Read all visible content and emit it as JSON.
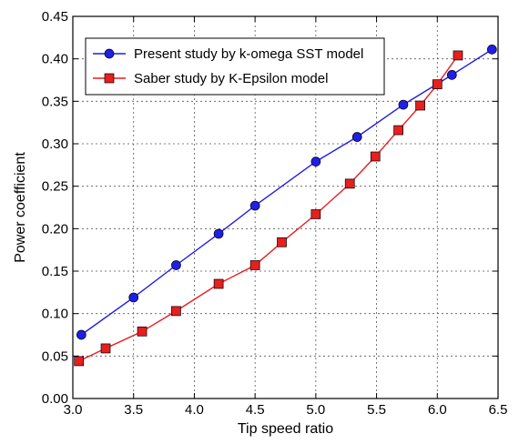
{
  "chart_data": {
    "type": "line",
    "xlabel": "Tip speed ratio",
    "ylabel": "Power coefficient",
    "xlim": [
      3.0,
      6.5
    ],
    "ylim": [
      0.0,
      0.45
    ],
    "x_ticks": [
      "3.0",
      "3.5",
      "4.0",
      "4.5",
      "5.0",
      "5.5",
      "6.0",
      "6.5"
    ],
    "y_ticks": [
      "0.00",
      "0.05",
      "0.10",
      "0.15",
      "0.20",
      "0.25",
      "0.30",
      "0.35",
      "0.40",
      "0.45"
    ],
    "grid": true,
    "legend_position": "top-left",
    "series": [
      {
        "name": "Present study by k-omega SST model",
        "color": "#1f1fe6",
        "marker": "circle",
        "points": [
          {
            "x": 3.07,
            "y": 0.075
          },
          {
            "x": 3.5,
            "y": 0.119
          },
          {
            "x": 3.85,
            "y": 0.157
          },
          {
            "x": 4.2,
            "y": 0.194
          },
          {
            "x": 4.5,
            "y": 0.227
          },
          {
            "x": 5.0,
            "y": 0.279
          },
          {
            "x": 5.34,
            "y": 0.308
          },
          {
            "x": 5.72,
            "y": 0.346
          },
          {
            "x": 6.12,
            "y": 0.381
          },
          {
            "x": 6.45,
            "y": 0.411
          }
        ]
      },
      {
        "name": "Saber study by K-Epsilon model",
        "color": "#e61f1f",
        "marker": "square",
        "points": [
          {
            "x": 3.05,
            "y": 0.044
          },
          {
            "x": 3.27,
            "y": 0.059
          },
          {
            "x": 3.57,
            "y": 0.079
          },
          {
            "x": 3.85,
            "y": 0.103
          },
          {
            "x": 4.2,
            "y": 0.135
          },
          {
            "x": 4.5,
            "y": 0.157
          },
          {
            "x": 4.72,
            "y": 0.184
          },
          {
            "x": 5.0,
            "y": 0.217
          },
          {
            "x": 5.28,
            "y": 0.253
          },
          {
            "x": 5.49,
            "y": 0.285
          },
          {
            "x": 5.68,
            "y": 0.316
          },
          {
            "x": 5.86,
            "y": 0.345
          },
          {
            "x": 6.0,
            "y": 0.37
          },
          {
            "x": 6.17,
            "y": 0.404
          }
        ]
      }
    ]
  }
}
